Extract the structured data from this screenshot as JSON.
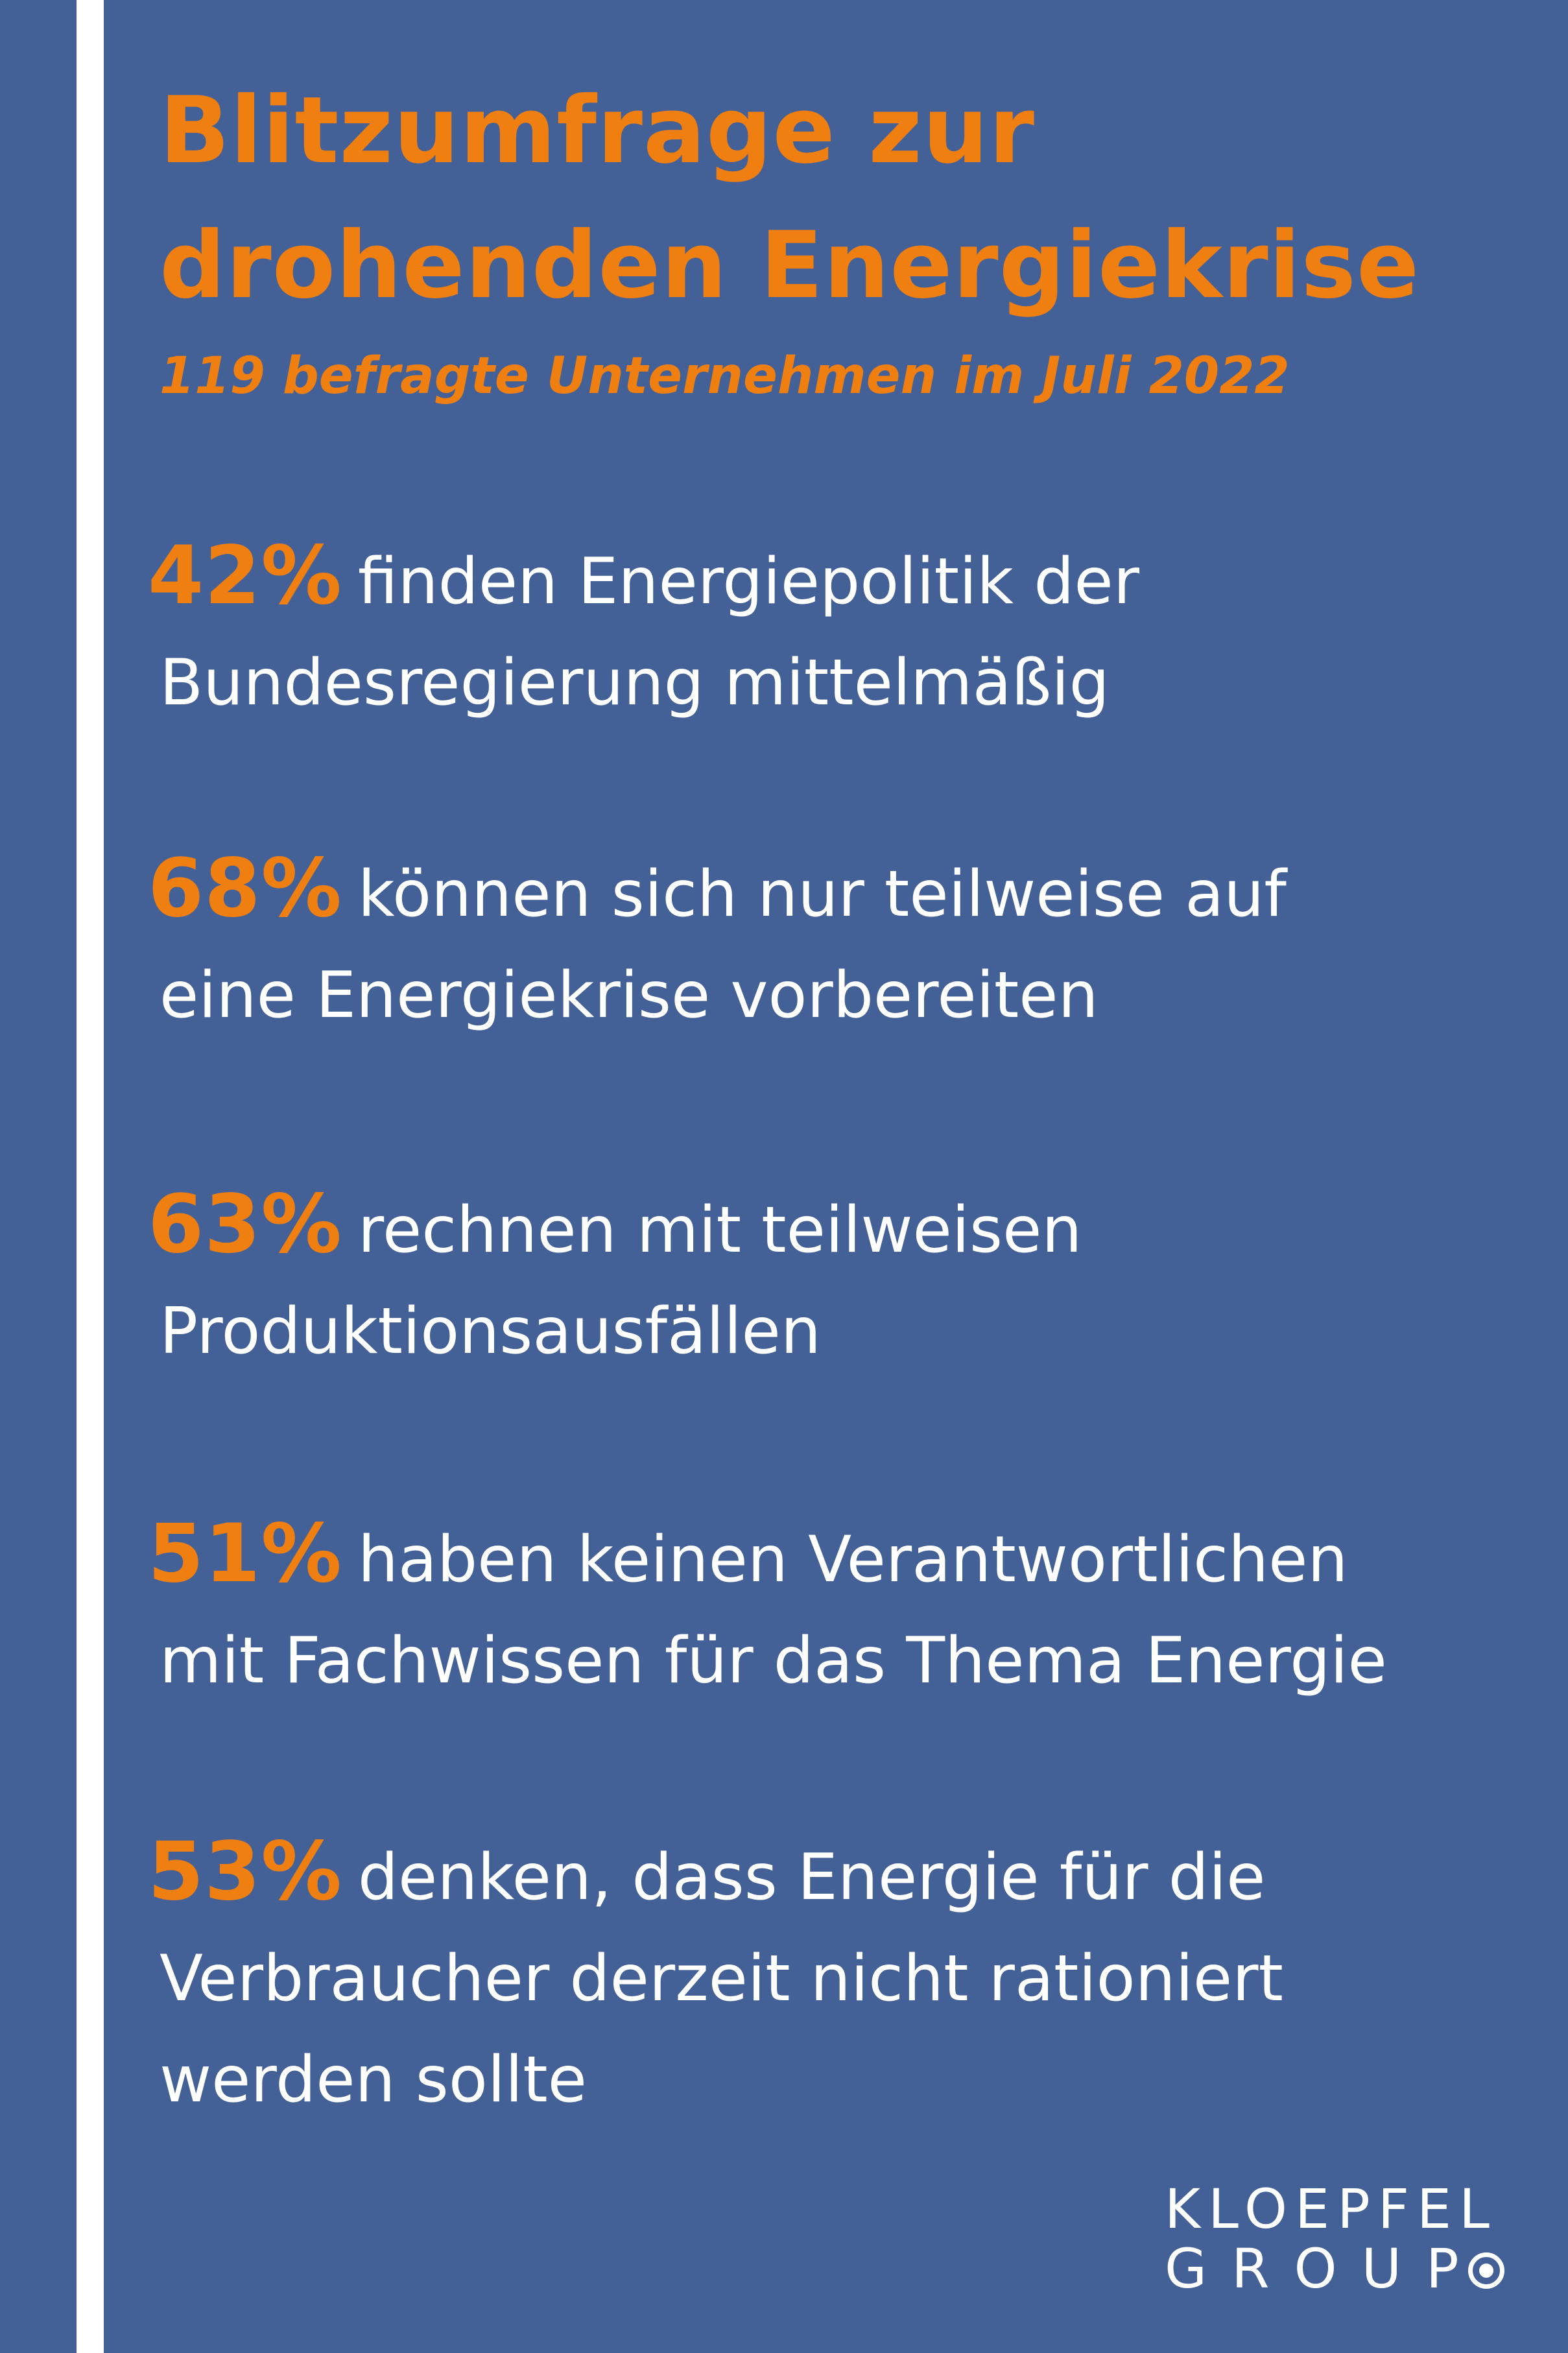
{
  "title": {
    "line1": "Blitzumfrage zur",
    "line2": "drohenden Energiekrise"
  },
  "subtitle": "119 befragte Unternehmen im Juli 2022",
  "stats": [
    {
      "percent": "42%",
      "line1": "finden Energiepolitik der",
      "line2": "Bundesregierung mittelmäßig"
    },
    {
      "percent": "68%",
      "line1": "können sich nur teilweise auf",
      "line2": "eine Energiekrise vorbereiten"
    },
    {
      "percent": "63%",
      "line1": "rechnen mit teilweisen",
      "line2": "Produktionsausfällen"
    },
    {
      "percent": "51%",
      "line1": "haben keinen Verantwortlichen",
      "line2": "mit Fachwissen für das Thema Energie"
    },
    {
      "percent": "53%",
      "line1": "denken, dass Energie für die",
      "line2": "Verbraucher derzeit nicht rationiert",
      "line3": "werden sollte"
    }
  ],
  "logo": {
    "line1": "KLOEPFEL",
    "line2": "GROUP"
  },
  "colors": {
    "background": "#446197",
    "accent": "#f07f12",
    "text": "#ffffff"
  }
}
